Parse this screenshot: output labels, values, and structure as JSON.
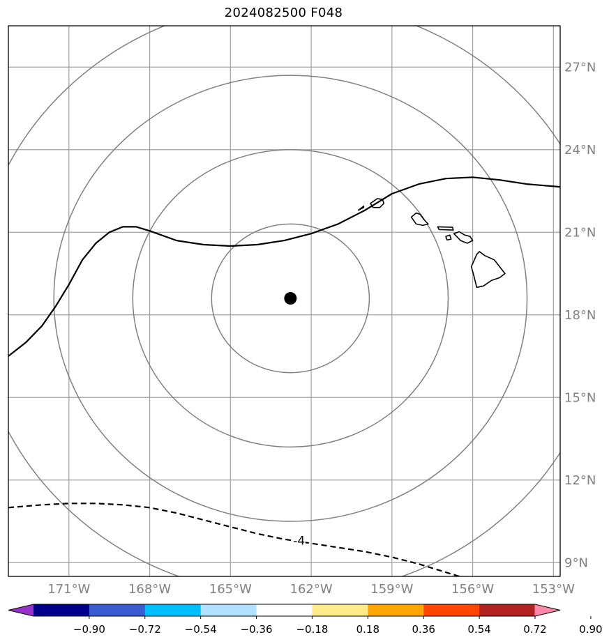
{
  "title": "2024082500 F048",
  "map": {
    "lon_range": [
      -173.25,
      -152.75
    ],
    "lat_range": [
      8.5,
      28.5
    ],
    "grid_lines": "on",
    "lon_ticks": [
      {
        "value": -171,
        "label": "171°W"
      },
      {
        "value": -168,
        "label": "168°W"
      },
      {
        "value": -165,
        "label": "165°W"
      },
      {
        "value": -162,
        "label": "162°W"
      },
      {
        "value": -159,
        "label": "159°W"
      },
      {
        "value": -156,
        "label": "156°W"
      },
      {
        "value": -153,
        "label": "153°W"
      }
    ],
    "lat_ticks": [
      {
        "value": 9,
        "label": "9°N"
      },
      {
        "value": 12,
        "label": "12°N"
      },
      {
        "value": 15,
        "label": "15°N"
      },
      {
        "value": 18,
        "label": "18°N"
      },
      {
        "value": 21,
        "label": "21°N"
      },
      {
        "value": 24,
        "label": "24°N"
      },
      {
        "value": 27,
        "label": "27°N"
      }
    ],
    "center_marker": {
      "lon": -162.77,
      "lat": 18.6
    },
    "range_ring_lat_offsets": [
      2.7,
      5.4,
      8.1,
      10.8
    ],
    "contours": [
      {
        "style": "solid",
        "label": "",
        "points": [
          [
            -173.25,
            16.5
          ],
          [
            -172.6,
            17.0
          ],
          [
            -172.0,
            17.6
          ],
          [
            -171.5,
            18.3
          ],
          [
            -171.0,
            19.1
          ],
          [
            -170.5,
            20.0
          ],
          [
            -170.0,
            20.6
          ],
          [
            -169.5,
            21.0
          ],
          [
            -169.0,
            21.2
          ],
          [
            -168.5,
            21.2
          ],
          [
            -168.0,
            21.05
          ],
          [
            -167.0,
            20.7
          ],
          [
            -166.0,
            20.55
          ],
          [
            -165.0,
            20.5
          ],
          [
            -164.0,
            20.55
          ],
          [
            -163.0,
            20.7
          ],
          [
            -162.0,
            20.95
          ],
          [
            -161.0,
            21.3
          ],
          [
            -160.0,
            21.8
          ],
          [
            -159.5,
            22.1
          ],
          [
            -159.0,
            22.4
          ],
          [
            -158.0,
            22.75
          ],
          [
            -157.0,
            22.95
          ],
          [
            -156.0,
            23.0
          ],
          [
            -155.0,
            22.9
          ],
          [
            -154.0,
            22.75
          ],
          [
            -152.75,
            22.65
          ]
        ]
      },
      {
        "style": "dashed",
        "label": "-4",
        "label_lon": -162.45,
        "label_lat": 9.75,
        "points": [
          [
            -173.25,
            11.0
          ],
          [
            -172.0,
            11.1
          ],
          [
            -171.0,
            11.15
          ],
          [
            -170.0,
            11.15
          ],
          [
            -169.0,
            11.1
          ],
          [
            -168.0,
            11.0
          ],
          [
            -167.0,
            10.8
          ],
          [
            -166.0,
            10.55
          ],
          [
            -165.0,
            10.3
          ],
          [
            -164.0,
            10.05
          ],
          [
            -163.0,
            9.85
          ],
          [
            -162.0,
            9.7
          ],
          [
            -161.0,
            9.55
          ],
          [
            -160.0,
            9.4
          ],
          [
            -159.0,
            9.2
          ],
          [
            -158.0,
            8.95
          ],
          [
            -157.0,
            8.65
          ],
          [
            -156.5,
            8.5
          ]
        ]
      }
    ],
    "islands": [
      {
        "name": "Niihau",
        "points": [
          [
            -160.25,
            21.8
          ],
          [
            -160.05,
            21.9
          ],
          [
            -160.05,
            21.95
          ],
          [
            -160.18,
            21.85
          ]
        ]
      },
      {
        "name": "Kauai",
        "points": [
          [
            -159.8,
            22.05
          ],
          [
            -159.55,
            22.22
          ],
          [
            -159.35,
            22.2
          ],
          [
            -159.3,
            22.05
          ],
          [
            -159.45,
            21.9
          ],
          [
            -159.7,
            21.9
          ]
        ]
      },
      {
        "name": "Oahu",
        "points": [
          [
            -158.28,
            21.55
          ],
          [
            -158.1,
            21.7
          ],
          [
            -157.95,
            21.65
          ],
          [
            -157.8,
            21.45
          ],
          [
            -157.65,
            21.3
          ],
          [
            -157.85,
            21.25
          ],
          [
            -158.1,
            21.3
          ]
        ]
      },
      {
        "name": "Molokai",
        "points": [
          [
            -157.3,
            21.2
          ],
          [
            -156.75,
            21.18
          ],
          [
            -156.72,
            21.08
          ],
          [
            -157.25,
            21.1
          ]
        ]
      },
      {
        "name": "Lanai",
        "points": [
          [
            -157.0,
            20.85
          ],
          [
            -156.85,
            20.9
          ],
          [
            -156.8,
            20.75
          ],
          [
            -156.95,
            20.72
          ]
        ]
      },
      {
        "name": "Maui",
        "points": [
          [
            -156.7,
            20.95
          ],
          [
            -156.5,
            21.02
          ],
          [
            -156.3,
            20.9
          ],
          [
            -156.1,
            20.85
          ],
          [
            -156.0,
            20.7
          ],
          [
            -156.2,
            20.6
          ],
          [
            -156.45,
            20.7
          ],
          [
            -156.55,
            20.8
          ]
        ]
      },
      {
        "name": "Hawaii",
        "points": [
          [
            -155.85,
            20.2
          ],
          [
            -155.75,
            20.3
          ],
          [
            -155.55,
            20.15
          ],
          [
            -155.2,
            20.0
          ],
          [
            -155.0,
            19.75
          ],
          [
            -154.8,
            19.5
          ],
          [
            -155.0,
            19.35
          ],
          [
            -155.3,
            19.25
          ],
          [
            -155.6,
            19.05
          ],
          [
            -155.85,
            19.0
          ],
          [
            -155.95,
            19.4
          ],
          [
            -156.05,
            19.75
          ]
        ]
      }
    ]
  },
  "colorbar": {
    "colors": [
      "#9932cc",
      "#00008b",
      "#3a5bd0",
      "#00bfff",
      "#b0e2ff",
      "#ffffff",
      "#ffeb8a",
      "#ffa500",
      "#ff4500",
      "#b22222",
      "#ff88aa"
    ],
    "labels": [
      "−0.90",
      "−0.72",
      "−0.54",
      "−0.36",
      "−0.18",
      "0.18",
      "0.36",
      "0.54",
      "0.72",
      "0.90"
    ]
  }
}
